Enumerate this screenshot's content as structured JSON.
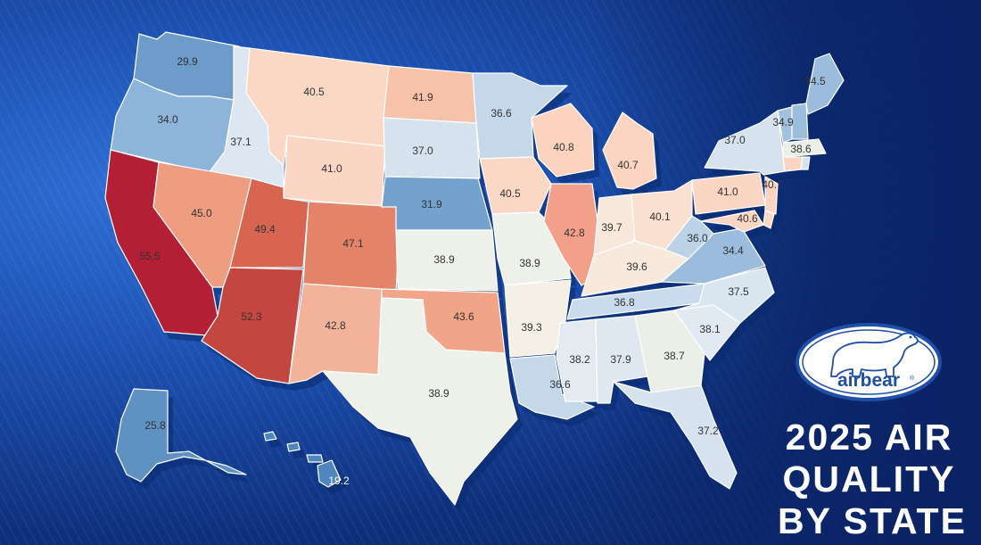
{
  "title_lines": [
    "2025 AIR",
    "QUALITY",
    "BY STATE"
  ],
  "logo": {
    "wordmark": "airbear",
    "registered_mark": "®",
    "icon": "polar-bear-icon"
  },
  "colors": {
    "background": "#0e2f7a",
    "title": "#ffffff",
    "scale_low": "#5f91c2",
    "scale_mid": "#eef0ea",
    "scale_high": "#b31f35"
  },
  "map": {
    "type": "choropleth",
    "region": "United States",
    "legend": false,
    "states": [
      {
        "state": "Washington",
        "value": "29.9",
        "fill": "#6d9ccb"
      },
      {
        "state": "Oregon",
        "value": "34.0",
        "fill": "#8fb4d9"
      },
      {
        "state": "California",
        "value": "55.5",
        "fill": "#b31f35"
      },
      {
        "state": "Idaho",
        "value": "37.1",
        "fill": "#dce7f1"
      },
      {
        "state": "Nevada",
        "value": "45.0",
        "fill": "#ee9d80"
      },
      {
        "state": "Montana",
        "value": "40.5",
        "fill": "#fbd7c5"
      },
      {
        "state": "Wyoming",
        "value": "41.0",
        "fill": "#fcd6c4"
      },
      {
        "state": "Utah",
        "value": "49.4",
        "fill": "#d86552"
      },
      {
        "state": "Arizona",
        "value": "52.3",
        "fill": "#c44640"
      },
      {
        "state": "Colorado",
        "value": "47.1",
        "fill": "#e2836a"
      },
      {
        "state": "New Mexico",
        "value": "42.8",
        "fill": "#f3b39b"
      },
      {
        "state": "North Dakota",
        "value": "41.9",
        "fill": "#f7c2aa"
      },
      {
        "state": "South Dakota",
        "value": "37.0",
        "fill": "#d6e3ef"
      },
      {
        "state": "Nebraska",
        "value": "31.9",
        "fill": "#72a2cd"
      },
      {
        "state": "Kansas",
        "value": "38.9",
        "fill": "#eef0ea"
      },
      {
        "state": "Oklahoma",
        "value": "43.6",
        "fill": "#f1a487"
      },
      {
        "state": "Texas",
        "value": "38.9",
        "fill": "#eef0ea"
      },
      {
        "state": "Minnesota",
        "value": "36.6",
        "fill": "#c5d8ea"
      },
      {
        "state": "Iowa",
        "value": "40.5",
        "fill": "#fbd7c5"
      },
      {
        "state": "Missouri",
        "value": "38.9",
        "fill": "#eef0ea"
      },
      {
        "state": "Arkansas",
        "value": "39.3",
        "fill": "#f4f0e6"
      },
      {
        "state": "Louisiana",
        "value": "36.6",
        "fill": "#c5d8ea"
      },
      {
        "state": "Wisconsin",
        "value": "40.8",
        "fill": "#fbd3bf"
      },
      {
        "state": "Illinois",
        "value": "42.8",
        "fill": "#f3a08a"
      },
      {
        "state": "Michigan",
        "value": "40.7",
        "fill": "#fbd5c2"
      },
      {
        "state": "Indiana",
        "value": "39.7",
        "fill": "#f8e8dc"
      },
      {
        "state": "Ohio",
        "value": "40.1",
        "fill": "#fae0d0"
      },
      {
        "state": "Kentucky",
        "value": "39.6",
        "fill": "#f8e9dd"
      },
      {
        "state": "Tennessee",
        "value": "36.8",
        "fill": "#c9dbec"
      },
      {
        "state": "Mississippi",
        "value": "38.2",
        "fill": "#e3ebf1"
      },
      {
        "state": "Alabama",
        "value": "37.9",
        "fill": "#dfe8f1"
      },
      {
        "state": "Georgia",
        "value": "38.7",
        "fill": "#eceee8"
      },
      {
        "state": "Florida",
        "value": "37.2",
        "fill": "#d6e3ef"
      },
      {
        "state": "South Carolina",
        "value": "38.1",
        "fill": "#e1e9f1"
      },
      {
        "state": "North Carolina",
        "value": "37.5",
        "fill": "#d9e5ef"
      },
      {
        "state": "Virginia",
        "value": "34.4",
        "fill": "#9bbcdc"
      },
      {
        "state": "West Virginia",
        "value": "36.0",
        "fill": "#bcd2e7"
      },
      {
        "state": "Pennsylvania",
        "value": "41.0",
        "fill": "#fcd6c4"
      },
      {
        "state": "New York",
        "value": "37.0",
        "fill": "#d6e3ef"
      },
      {
        "state": "New Jersey",
        "value": "40.7",
        "fill": "#fbd5c2"
      },
      {
        "state": "Maryland",
        "value": "40.6",
        "fill": "#fbd6c4"
      },
      {
        "state": "Vermont",
        "value": "34.9",
        "fill": "#a2c1de"
      },
      {
        "state": "New Hampshire",
        "value": "",
        "fill": "#9dbddc"
      },
      {
        "state": "Maine",
        "value": "34.5",
        "fill": "#9bbcdc"
      },
      {
        "state": "Massachusetts",
        "value": "38.6",
        "fill": "#ebeee9"
      },
      {
        "state": "Connecticut",
        "value": "",
        "fill": "#fbd5c2"
      },
      {
        "state": "Rhode Island",
        "value": "",
        "fill": "#d6e3ef"
      },
      {
        "state": "Delaware",
        "value": "",
        "fill": "#fbd6c4"
      },
      {
        "state": "Alaska",
        "value": "25.8",
        "fill": "#5f91c2"
      },
      {
        "state": "Hawaii",
        "value": "19.2",
        "fill": "#4f86bd"
      }
    ]
  }
}
